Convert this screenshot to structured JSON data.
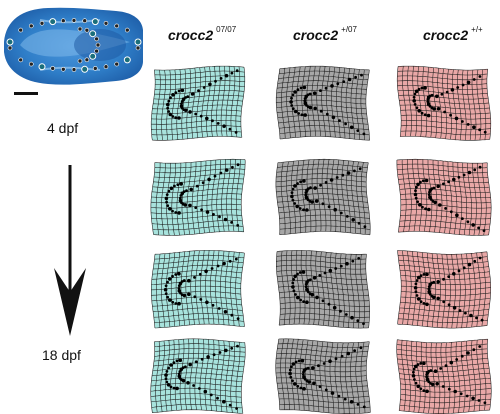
{
  "genotypes": [
    {
      "name": "crocc2",
      "sup": "07/07",
      "color": "#a8e3dd"
    },
    {
      "name": "crocc2",
      "sup": "+/07",
      "color": "#a7a7a7"
    },
    {
      "name": "crocc2",
      "sup": "+/+",
      "color": "#e9a8a7"
    }
  ],
  "stages": {
    "start": "4 dpf",
    "end": "18 dpf"
  },
  "rows": 4,
  "colors": {
    "line": "#111111",
    "skull_blue": "#2f7ec8",
    "landmark_fill": "#1a6e7a",
    "landmark_ring": "#ffffff"
  }
}
